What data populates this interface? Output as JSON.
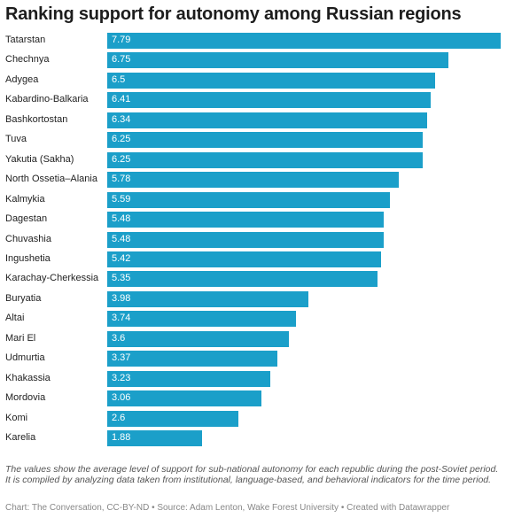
{
  "title": "Ranking support for autonomy among Russian regions",
  "notes": "The values show the average level of support for sub-national autonomy for each republic during the post-Soviet period. It is compiled by analyzing data taken from institutional, language-based, and behavioral indicators for the time period.",
  "source": "Chart: The Conversation, CC-BY-ND • Source: Adam Lenton, Wake Forest University • Created with Datawrapper",
  "colors": {
    "bar": "#1b9fc9",
    "bar_label": "#ffffff"
  },
  "chart_data": {
    "type": "bar",
    "orientation": "horizontal",
    "categories": [
      "Tatarstan",
      "Chechnya",
      "Adygea",
      "Kabardino-Balkaria",
      "Bashkortostan",
      "Tuva",
      "Yakutia (Sakha)",
      "North Ossetia–Alania",
      "Kalmykia",
      "Dagestan",
      "Chuvashia",
      "Ingushetia",
      "Karachay-Cherkessia",
      "Buryatia",
      "Altai",
      "Mari El",
      "Udmurtia",
      "Khakassia",
      "Mordovia",
      "Komi",
      "Karelia"
    ],
    "values": [
      7.79,
      6.75,
      6.5,
      6.41,
      6.34,
      6.25,
      6.25,
      5.78,
      5.59,
      5.48,
      5.48,
      5.42,
      5.35,
      3.98,
      3.74,
      3.6,
      3.37,
      3.23,
      3.06,
      2.6,
      1.88
    ],
    "value_labels": [
      "7.79",
      "6.75",
      "6.5",
      "6.41",
      "6.34",
      "6.25",
      "6.25",
      "5.78",
      "5.59",
      "5.48",
      "5.48",
      "5.42",
      "5.35",
      "3.98",
      "3.74",
      "3.6",
      "3.37",
      "3.23",
      "3.06",
      "2.6",
      "1.88"
    ],
    "xlim": [
      0,
      7.79
    ],
    "grid": false,
    "legend": "none",
    "title": "Ranking support for autonomy among Russian regions",
    "xlabel": "",
    "ylabel": ""
  }
}
